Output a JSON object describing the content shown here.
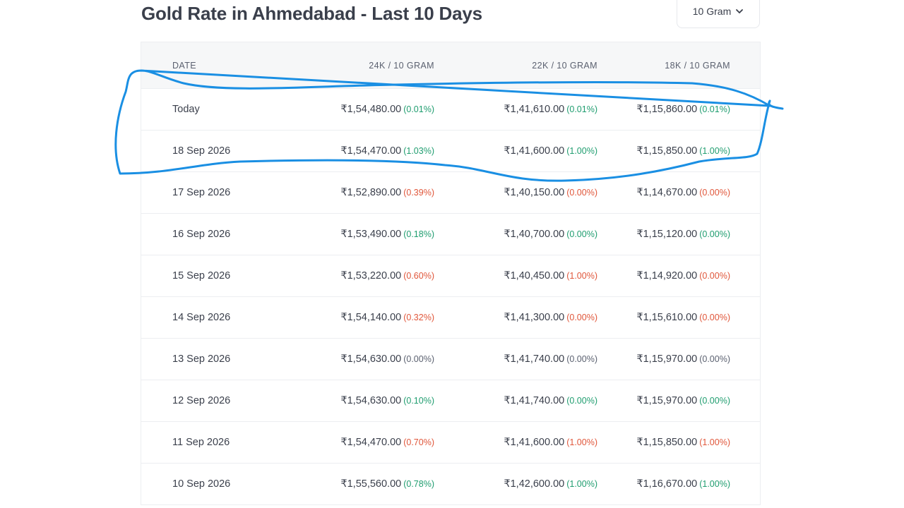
{
  "page": {
    "title": "Gold Rate in Ahmedabad - Last 10 Days"
  },
  "unit_select": {
    "value": "10 Gram"
  },
  "table": {
    "headers": {
      "date": "DATE",
      "k24": "24K / 10 GRAM",
      "k22": "22K / 10 GRAM",
      "k18": "18K / 10 GRAM"
    },
    "rows": [
      {
        "date": "Today",
        "k24": {
          "price": "₹1,54,480.00",
          "pct": "(0.01%)",
          "dir": "up"
        },
        "k22": {
          "price": "₹1,41,610.00",
          "pct": "(0.01%)",
          "dir": "up"
        },
        "k18": {
          "price": "₹1,15,860.00",
          "pct": "(0.01%)",
          "dir": "up"
        }
      },
      {
        "date": "18 Sep 2026",
        "k24": {
          "price": "₹1,54,470.00",
          "pct": "(1.03%)",
          "dir": "up"
        },
        "k22": {
          "price": "₹1,41,600.00",
          "pct": "(1.00%)",
          "dir": "up"
        },
        "k18": {
          "price": "₹1,15,850.00",
          "pct": "(1.00%)",
          "dir": "up"
        }
      },
      {
        "date": "17 Sep 2026",
        "k24": {
          "price": "₹1,52,890.00",
          "pct": "(0.39%)",
          "dir": "down"
        },
        "k22": {
          "price": "₹1,40,150.00",
          "pct": "(0.00%)",
          "dir": "down"
        },
        "k18": {
          "price": "₹1,14,670.00",
          "pct": "(0.00%)",
          "dir": "down"
        }
      },
      {
        "date": "16 Sep 2026",
        "k24": {
          "price": "₹1,53,490.00",
          "pct": "(0.18%)",
          "dir": "up"
        },
        "k22": {
          "price": "₹1,40,700.00",
          "pct": "(0.00%)",
          "dir": "up"
        },
        "k18": {
          "price": "₹1,15,120.00",
          "pct": "(0.00%)",
          "dir": "up"
        }
      },
      {
        "date": "15 Sep 2026",
        "k24": {
          "price": "₹1,53,220.00",
          "pct": "(0.60%)",
          "dir": "down"
        },
        "k22": {
          "price": "₹1,40,450.00",
          "pct": "(1.00%)",
          "dir": "down"
        },
        "k18": {
          "price": "₹1,14,920.00",
          "pct": "(0.00%)",
          "dir": "down"
        }
      },
      {
        "date": "14 Sep 2026",
        "k24": {
          "price": "₹1,54,140.00",
          "pct": "(0.32%)",
          "dir": "down"
        },
        "k22": {
          "price": "₹1,41,300.00",
          "pct": "(0.00%)",
          "dir": "down"
        },
        "k18": {
          "price": "₹1,15,610.00",
          "pct": "(0.00%)",
          "dir": "down"
        }
      },
      {
        "date": "13 Sep 2026",
        "k24": {
          "price": "₹1,54,630.00",
          "pct": "(0.00%)",
          "dir": "flat"
        },
        "k22": {
          "price": "₹1,41,740.00",
          "pct": "(0.00%)",
          "dir": "flat"
        },
        "k18": {
          "price": "₹1,15,970.00",
          "pct": "(0.00%)",
          "dir": "flat"
        }
      },
      {
        "date": "12 Sep 2026",
        "k24": {
          "price": "₹1,54,630.00",
          "pct": "(0.10%)",
          "dir": "up"
        },
        "k22": {
          "price": "₹1,41,740.00",
          "pct": "(0.00%)",
          "dir": "up"
        },
        "k18": {
          "price": "₹1,15,970.00",
          "pct": "(0.00%)",
          "dir": "up"
        }
      },
      {
        "date": "11 Sep 2026",
        "k24": {
          "price": "₹1,54,470.00",
          "pct": "(0.70%)",
          "dir": "down"
        },
        "k22": {
          "price": "₹1,41,600.00",
          "pct": "(1.00%)",
          "dir": "down"
        },
        "k18": {
          "price": "₹1,15,850.00",
          "pct": "(1.00%)",
          "dir": "down"
        }
      },
      {
        "date": "10 Sep 2026",
        "k24": {
          "price": "₹1,55,560.00",
          "pct": "(0.78%)",
          "dir": "up"
        },
        "k22": {
          "price": "₹1,42,600.00",
          "pct": "(1.00%)",
          "dir": "up"
        },
        "k18": {
          "price": "₹1,16,670.00",
          "pct": "(1.00%)",
          "dir": "up"
        }
      }
    ]
  },
  "colors": {
    "up": "#1f9d6f",
    "down": "#e0563a",
    "flat": "#5b6170",
    "annotation_stroke": "#1a8fe3"
  }
}
